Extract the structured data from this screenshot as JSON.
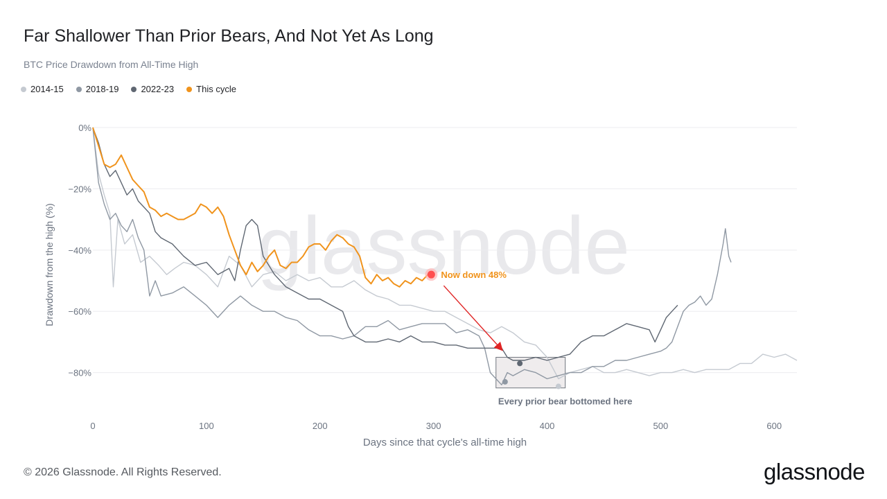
{
  "header": {
    "title": "Far Shallower Than Prior Bears, And Not Yet As Long",
    "subtitle": "BTC Price Drawdown from All-Time High"
  },
  "footer": {
    "copyright": "© 2026 Glassnode. All Rights Reserved.",
    "brand": "glassnode"
  },
  "chart_data": {
    "type": "line",
    "xlabel": "Days since that cycle's all-time high",
    "ylabel": "Drawdown from the high (%)",
    "xlim": [
      0,
      620
    ],
    "ylim": [
      -88,
      0
    ],
    "xticks": [
      0,
      100,
      200,
      300,
      400,
      500,
      600
    ],
    "yticks": [
      0,
      -20,
      -40,
      -60,
      -80
    ],
    "ytick_labels": [
      "0%",
      "−20%",
      "−40%",
      "−60%",
      "−80%"
    ],
    "grid": true,
    "legend_position": "top-left",
    "watermark": "glassnode",
    "series": [
      {
        "name": "2014-15",
        "color": "#c5cad1",
        "points": [
          [
            0,
            0
          ],
          [
            5,
            -15
          ],
          [
            10,
            -22
          ],
          [
            15,
            -28
          ],
          [
            18,
            -52
          ],
          [
            22,
            -30
          ],
          [
            28,
            -38
          ],
          [
            35,
            -35
          ],
          [
            42,
            -44
          ],
          [
            50,
            -42
          ],
          [
            58,
            -45
          ],
          [
            65,
            -48
          ],
          [
            72,
            -46
          ],
          [
            80,
            -44
          ],
          [
            90,
            -45
          ],
          [
            100,
            -48
          ],
          [
            110,
            -52
          ],
          [
            120,
            -42
          ],
          [
            130,
            -45
          ],
          [
            140,
            -52
          ],
          [
            150,
            -48
          ],
          [
            160,
            -47
          ],
          [
            170,
            -50
          ],
          [
            180,
            -48
          ],
          [
            190,
            -50
          ],
          [
            200,
            -49
          ],
          [
            210,
            -52
          ],
          [
            220,
            -52
          ],
          [
            230,
            -50
          ],
          [
            240,
            -53
          ],
          [
            250,
            -55
          ],
          [
            260,
            -56
          ],
          [
            270,
            -58
          ],
          [
            280,
            -58
          ],
          [
            290,
            -59
          ],
          [
            300,
            -60
          ],
          [
            310,
            -60
          ],
          [
            320,
            -62
          ],
          [
            330,
            -64
          ],
          [
            340,
            -66
          ],
          [
            350,
            -67
          ],
          [
            360,
            -65
          ],
          [
            370,
            -67
          ],
          [
            380,
            -70
          ],
          [
            390,
            -71
          ],
          [
            400,
            -75
          ],
          [
            410,
            -82
          ],
          [
            420,
            -80
          ],
          [
            430,
            -79
          ],
          [
            440,
            -78
          ],
          [
            450,
            -80
          ],
          [
            460,
            -80
          ],
          [
            470,
            -79
          ],
          [
            480,
            -80
          ],
          [
            490,
            -81
          ],
          [
            500,
            -80
          ],
          [
            510,
            -80
          ],
          [
            520,
            -79
          ],
          [
            530,
            -80
          ],
          [
            540,
            -79
          ],
          [
            550,
            -79
          ],
          [
            560,
            -79
          ],
          [
            570,
            -77
          ],
          [
            580,
            -77
          ],
          [
            590,
            -74
          ],
          [
            600,
            -75
          ],
          [
            610,
            -74
          ],
          [
            620,
            -76
          ]
        ]
      },
      {
        "name": "2018-19",
        "color": "#8f98a3",
        "points": [
          [
            0,
            0
          ],
          [
            5,
            -18
          ],
          [
            10,
            -25
          ],
          [
            15,
            -30
          ],
          [
            20,
            -28
          ],
          [
            25,
            -32
          ],
          [
            30,
            -34
          ],
          [
            35,
            -30
          ],
          [
            40,
            -36
          ],
          [
            45,
            -40
          ],
          [
            50,
            -55
          ],
          [
            55,
            -50
          ],
          [
            60,
            -55
          ],
          [
            70,
            -54
          ],
          [
            80,
            -52
          ],
          [
            90,
            -55
          ],
          [
            100,
            -58
          ],
          [
            110,
            -62
          ],
          [
            120,
            -58
          ],
          [
            130,
            -55
          ],
          [
            140,
            -58
          ],
          [
            150,
            -60
          ],
          [
            160,
            -60
          ],
          [
            170,
            -62
          ],
          [
            180,
            -63
          ],
          [
            190,
            -66
          ],
          [
            200,
            -68
          ],
          [
            210,
            -68
          ],
          [
            220,
            -69
          ],
          [
            230,
            -68
          ],
          [
            240,
            -65
          ],
          [
            250,
            -65
          ],
          [
            260,
            -63
          ],
          [
            270,
            -66
          ],
          [
            280,
            -65
          ],
          [
            290,
            -64
          ],
          [
            300,
            -64
          ],
          [
            310,
            -64
          ],
          [
            320,
            -67
          ],
          [
            330,
            -66
          ],
          [
            340,
            -68
          ],
          [
            345,
            -72
          ],
          [
            350,
            -80
          ],
          [
            355,
            -82
          ],
          [
            360,
            -84
          ],
          [
            365,
            -80
          ],
          [
            370,
            -81
          ],
          [
            380,
            -79
          ],
          [
            390,
            -80
          ],
          [
            400,
            -82
          ],
          [
            410,
            -81
          ],
          [
            420,
            -80
          ],
          [
            430,
            -80
          ],
          [
            440,
            -78
          ],
          [
            450,
            -78
          ],
          [
            460,
            -76
          ],
          [
            470,
            -76
          ],
          [
            480,
            -75
          ],
          [
            490,
            -74
          ],
          [
            500,
            -73
          ],
          [
            505,
            -72
          ],
          [
            510,
            -70
          ],
          [
            515,
            -65
          ],
          [
            520,
            -60
          ],
          [
            525,
            -58
          ],
          [
            530,
            -57
          ],
          [
            535,
            -55
          ],
          [
            540,
            -58
          ],
          [
            545,
            -56
          ],
          [
            550,
            -48
          ],
          [
            555,
            -38
          ],
          [
            557,
            -33
          ],
          [
            560,
            -42
          ],
          [
            562,
            -44
          ]
        ]
      },
      {
        "name": "2022-23",
        "color": "#5f6772",
        "points": [
          [
            0,
            0
          ],
          [
            5,
            -5
          ],
          [
            10,
            -12
          ],
          [
            15,
            -16
          ],
          [
            20,
            -14
          ],
          [
            25,
            -18
          ],
          [
            30,
            -22
          ],
          [
            35,
            -20
          ],
          [
            40,
            -24
          ],
          [
            45,
            -26
          ],
          [
            50,
            -28
          ],
          [
            55,
            -34
          ],
          [
            60,
            -36
          ],
          [
            65,
            -37
          ],
          [
            70,
            -38
          ],
          [
            80,
            -42
          ],
          [
            90,
            -45
          ],
          [
            100,
            -44
          ],
          [
            110,
            -48
          ],
          [
            120,
            -46
          ],
          [
            125,
            -50
          ],
          [
            130,
            -40
          ],
          [
            135,
            -32
          ],
          [
            140,
            -30
          ],
          [
            145,
            -32
          ],
          [
            150,
            -42
          ],
          [
            160,
            -48
          ],
          [
            170,
            -52
          ],
          [
            180,
            -54
          ],
          [
            190,
            -56
          ],
          [
            200,
            -56
          ],
          [
            210,
            -58
          ],
          [
            220,
            -60
          ],
          [
            225,
            -65
          ],
          [
            230,
            -68
          ],
          [
            240,
            -70
          ],
          [
            250,
            -70
          ],
          [
            260,
            -69
          ],
          [
            270,
            -70
          ],
          [
            280,
            -68
          ],
          [
            290,
            -70
          ],
          [
            300,
            -70
          ],
          [
            310,
            -71
          ],
          [
            320,
            -71
          ],
          [
            330,
            -72
          ],
          [
            340,
            -72
          ],
          [
            350,
            -72
          ],
          [
            360,
            -72
          ],
          [
            365,
            -75
          ],
          [
            370,
            -76
          ],
          [
            380,
            -76
          ],
          [
            390,
            -75
          ],
          [
            400,
            -76
          ],
          [
            410,
            -75
          ],
          [
            420,
            -74
          ],
          [
            430,
            -70
          ],
          [
            440,
            -68
          ],
          [
            450,
            -68
          ],
          [
            460,
            -66
          ],
          [
            470,
            -64
          ],
          [
            480,
            -65
          ],
          [
            490,
            -66
          ],
          [
            495,
            -70
          ],
          [
            500,
            -66
          ],
          [
            505,
            -62
          ],
          [
            510,
            -60
          ],
          [
            515,
            -58
          ]
        ]
      },
      {
        "name": "This cycle",
        "color": "#f0931c",
        "points": [
          [
            0,
            0
          ],
          [
            5,
            -6
          ],
          [
            10,
            -12
          ],
          [
            15,
            -13
          ],
          [
            20,
            -12
          ],
          [
            25,
            -9
          ],
          [
            30,
            -13
          ],
          [
            35,
            -17
          ],
          [
            40,
            -19
          ],
          [
            45,
            -21
          ],
          [
            50,
            -26
          ],
          [
            55,
            -27
          ],
          [
            60,
            -29
          ],
          [
            65,
            -28
          ],
          [
            70,
            -29
          ],
          [
            75,
            -30
          ],
          [
            80,
            -30
          ],
          [
            85,
            -29
          ],
          [
            90,
            -28
          ],
          [
            95,
            -25
          ],
          [
            100,
            -26
          ],
          [
            105,
            -28
          ],
          [
            110,
            -26
          ],
          [
            115,
            -29
          ],
          [
            120,
            -35
          ],
          [
            125,
            -40
          ],
          [
            130,
            -45
          ],
          [
            135,
            -48
          ],
          [
            140,
            -44
          ],
          [
            145,
            -47
          ],
          [
            150,
            -45
          ],
          [
            155,
            -42
          ],
          [
            160,
            -40
          ],
          [
            165,
            -45
          ],
          [
            170,
            -46
          ],
          [
            175,
            -44
          ],
          [
            180,
            -44
          ],
          [
            185,
            -42
          ],
          [
            190,
            -39
          ],
          [
            195,
            -38
          ],
          [
            200,
            -38
          ],
          [
            205,
            -40
          ],
          [
            210,
            -37
          ],
          [
            215,
            -35
          ],
          [
            220,
            -36
          ],
          [
            225,
            -38
          ],
          [
            230,
            -39
          ],
          [
            235,
            -42
          ],
          [
            240,
            -49
          ],
          [
            245,
            -51
          ],
          [
            250,
            -48
          ],
          [
            255,
            -50
          ],
          [
            260,
            -49
          ],
          [
            265,
            -51
          ],
          [
            270,
            -52
          ],
          [
            275,
            -50
          ],
          [
            280,
            -51
          ],
          [
            285,
            -49
          ],
          [
            290,
            -50
          ],
          [
            295,
            -48
          ],
          [
            298,
            -48
          ]
        ]
      }
    ],
    "annotations": [
      {
        "text": "Now down 48%",
        "x": 298,
        "y": -48,
        "color": "#f0931c"
      },
      {
        "text": "Every prior bear bottomed here",
        "box_x": [
          355,
          416
        ],
        "box_y": [
          -85,
          -75
        ]
      }
    ],
    "bottom_markers": [
      {
        "series": "2018-19",
        "x": 363,
        "y": -83
      },
      {
        "series": "2022-23",
        "x": 376,
        "y": -77
      },
      {
        "series": "2014-15",
        "x": 410,
        "y": -84.5
      }
    ]
  }
}
